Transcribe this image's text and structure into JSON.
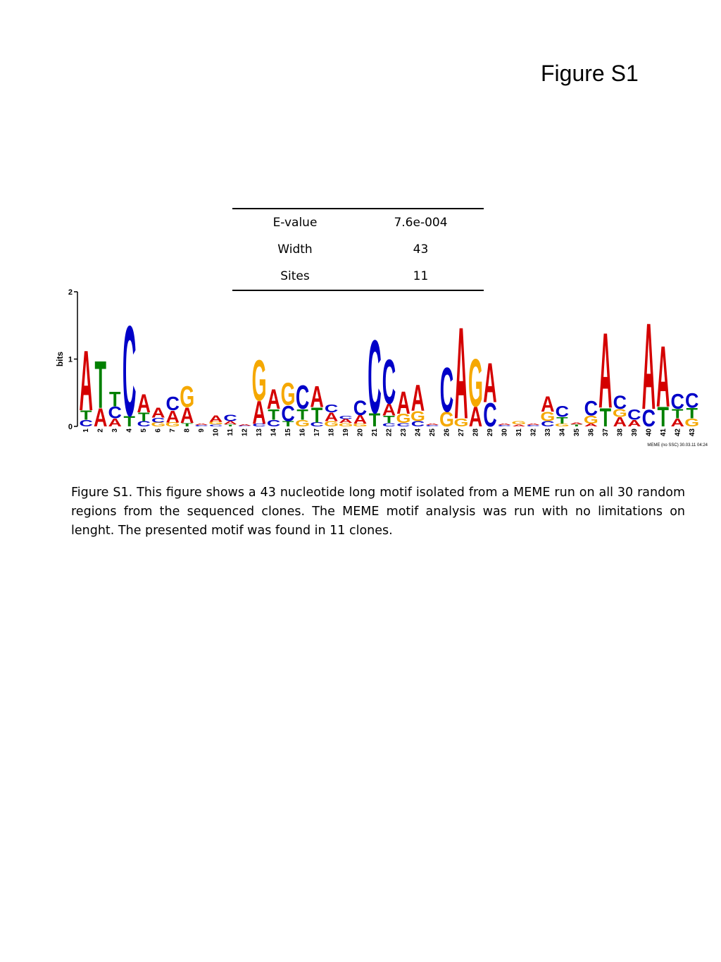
{
  "page": {
    "title": "Figure S1"
  },
  "stats_table": {
    "rows": [
      {
        "label": "E-value",
        "value": "7.6e-004"
      },
      {
        "label": "Width",
        "value": "43"
      },
      {
        "label": "Sites",
        "value": "11"
      }
    ]
  },
  "chart_data": {
    "type": "sequence-logo",
    "ylabel": "bits",
    "ylim": [
      0,
      2
    ],
    "yticks": [
      "0",
      "1",
      "2"
    ],
    "footer": "MEME (no SSC) 30.03.11 04:24",
    "colors": {
      "A": "#d40000",
      "C": "#0000c8",
      "G": "#f5a800",
      "T": "#008000"
    },
    "positions": [
      {
        "pos": "1",
        "stack": [
          [
            "C",
            0.1
          ],
          [
            "T",
            0.14
          ],
          [
            "A",
            0.92
          ]
        ]
      },
      {
        "pos": "2",
        "stack": [
          [
            "A",
            0.28
          ],
          [
            "T",
            0.72
          ]
        ]
      },
      {
        "pos": "3",
        "stack": [
          [
            "A",
            0.12
          ],
          [
            "C",
            0.18
          ],
          [
            "T",
            0.22
          ]
        ]
      },
      {
        "pos": "4",
        "stack": [
          [
            "T",
            0.16
          ],
          [
            "C",
            1.38
          ]
        ]
      },
      {
        "pos": "5",
        "stack": [
          [
            "C",
            0.08
          ],
          [
            "T",
            0.13
          ],
          [
            "A",
            0.28
          ]
        ]
      },
      {
        "pos": "6",
        "stack": [
          [
            "G",
            0.06
          ],
          [
            "C",
            0.07
          ],
          [
            "A",
            0.15
          ]
        ]
      },
      {
        "pos": "7",
        "stack": [
          [
            "G",
            0.06
          ],
          [
            "A",
            0.18
          ],
          [
            "C",
            0.21
          ]
        ]
      },
      {
        "pos": "8",
        "stack": [
          [
            "T",
            0.05
          ],
          [
            "A",
            0.24
          ],
          [
            "G",
            0.32
          ]
        ]
      },
      {
        "pos": "9",
        "stack": [
          [
            "C",
            0.02
          ],
          [
            "A",
            0.02
          ]
        ]
      },
      {
        "pos": "10",
        "stack": [
          [
            "C",
            0.03
          ],
          [
            "G",
            0.04
          ],
          [
            "A",
            0.1
          ]
        ]
      },
      {
        "pos": "11",
        "stack": [
          [
            "T",
            0.03
          ],
          [
            "A",
            0.05
          ],
          [
            "C",
            0.1
          ]
        ]
      },
      {
        "pos": "12",
        "stack": [
          [
            "C",
            0.01
          ],
          [
            "A",
            0.02
          ]
        ]
      },
      {
        "pos": "13",
        "stack": [
          [
            "C",
            0.04
          ],
          [
            "A",
            0.35
          ],
          [
            "G",
            0.62
          ]
        ]
      },
      {
        "pos": "14",
        "stack": [
          [
            "C",
            0.1
          ],
          [
            "T",
            0.16
          ],
          [
            "A",
            0.3
          ]
        ]
      },
      {
        "pos": "15",
        "stack": [
          [
            "T",
            0.08
          ],
          [
            "C",
            0.24
          ],
          [
            "G",
            0.34
          ]
        ]
      },
      {
        "pos": "16",
        "stack": [
          [
            "G",
            0.1
          ],
          [
            "T",
            0.16
          ],
          [
            "C",
            0.36
          ]
        ]
      },
      {
        "pos": "17",
        "stack": [
          [
            "C",
            0.06
          ],
          [
            "T",
            0.23
          ],
          [
            "A",
            0.32
          ]
        ]
      },
      {
        "pos": "18",
        "stack": [
          [
            "G",
            0.08
          ],
          [
            "A",
            0.13
          ],
          [
            "C",
            0.12
          ]
        ]
      },
      {
        "pos": "19",
        "stack": [
          [
            "G",
            0.05
          ],
          [
            "A",
            0.06
          ],
          [
            "C",
            0.05
          ]
        ]
      },
      {
        "pos": "20",
        "stack": [
          [
            "G",
            0.04
          ],
          [
            "A",
            0.13
          ],
          [
            "C",
            0.22
          ]
        ]
      },
      {
        "pos": "21",
        "stack": [
          [
            "T",
            0.2
          ],
          [
            "C",
            1.12
          ]
        ]
      },
      {
        "pos": "22",
        "stack": [
          [
            "C",
            0.05
          ],
          [
            "T",
            0.11
          ],
          [
            "A",
            0.18
          ],
          [
            "C",
            0.68
          ]
        ]
      },
      {
        "pos": "23",
        "stack": [
          [
            "C",
            0.05
          ],
          [
            "G",
            0.14
          ],
          [
            "A",
            0.34
          ]
        ]
      },
      {
        "pos": "24",
        "stack": [
          [
            "C",
            0.08
          ],
          [
            "G",
            0.15
          ],
          [
            "A",
            0.4
          ]
        ]
      },
      {
        "pos": "25",
        "stack": [
          [
            "C",
            0.02
          ],
          [
            "A",
            0.02
          ]
        ]
      },
      {
        "pos": "26",
        "stack": [
          [
            "G",
            0.22
          ],
          [
            "C",
            0.68
          ]
        ]
      },
      {
        "pos": "27",
        "stack": [
          [
            "G",
            0.12
          ],
          [
            "A",
            1.4
          ]
        ]
      },
      {
        "pos": "28",
        "stack": [
          [
            "A",
            0.3
          ],
          [
            "G",
            0.73
          ]
        ]
      },
      {
        "pos": "29",
        "stack": [
          [
            "C",
            0.36
          ],
          [
            "A",
            0.6
          ]
        ]
      },
      {
        "pos": "30",
        "stack": [
          [
            "C",
            0.02
          ],
          [
            "A",
            0.02
          ]
        ]
      },
      {
        "pos": "31",
        "stack": [
          [
            "A",
            0.03
          ],
          [
            "G",
            0.05
          ]
        ]
      },
      {
        "pos": "32",
        "stack": [
          [
            "C",
            0.02
          ],
          [
            "A",
            0.02
          ]
        ]
      },
      {
        "pos": "33",
        "stack": [
          [
            "C",
            0.08
          ],
          [
            "G",
            0.14
          ],
          [
            "A",
            0.24
          ]
        ]
      },
      {
        "pos": "34",
        "stack": [
          [
            "G",
            0.04
          ],
          [
            "T",
            0.1
          ],
          [
            "C",
            0.17
          ]
        ]
      },
      {
        "pos": "35",
        "stack": [
          [
            "T",
            0.03
          ],
          [
            "A",
            0.03
          ]
        ]
      },
      {
        "pos": "36",
        "stack": [
          [
            "A",
            0.04
          ],
          [
            "G",
            0.12
          ],
          [
            "C",
            0.22
          ]
        ]
      },
      {
        "pos": "37",
        "stack": [
          [
            "T",
            0.28
          ],
          [
            "A",
            1.15
          ]
        ]
      },
      {
        "pos": "38",
        "stack": [
          [
            "A",
            0.14
          ],
          [
            "G",
            0.12
          ],
          [
            "C",
            0.2
          ]
        ]
      },
      {
        "pos": "39",
        "stack": [
          [
            "A",
            0.1
          ],
          [
            "C",
            0.16
          ]
        ]
      },
      {
        "pos": "40",
        "stack": [
          [
            "C",
            0.26
          ],
          [
            "A",
            1.32
          ]
        ]
      },
      {
        "pos": "41",
        "stack": [
          [
            "T",
            0.3
          ],
          [
            "A",
            0.93
          ]
        ]
      },
      {
        "pos": "42",
        "stack": [
          [
            "A",
            0.12
          ],
          [
            "T",
            0.14
          ],
          [
            "C",
            0.23
          ]
        ]
      },
      {
        "pos": "43",
        "stack": [
          [
            "G",
            0.12
          ],
          [
            "T",
            0.16
          ],
          [
            "C",
            0.22
          ]
        ]
      }
    ]
  },
  "caption": "Figure S1. This figure shows a 43 nucleotide long motif isolated from a MEME run on all 30 random regions from the sequenced clones. The MEME motif analysis was run with no limitations on lenght. The presented motif was found in 11 clones."
}
